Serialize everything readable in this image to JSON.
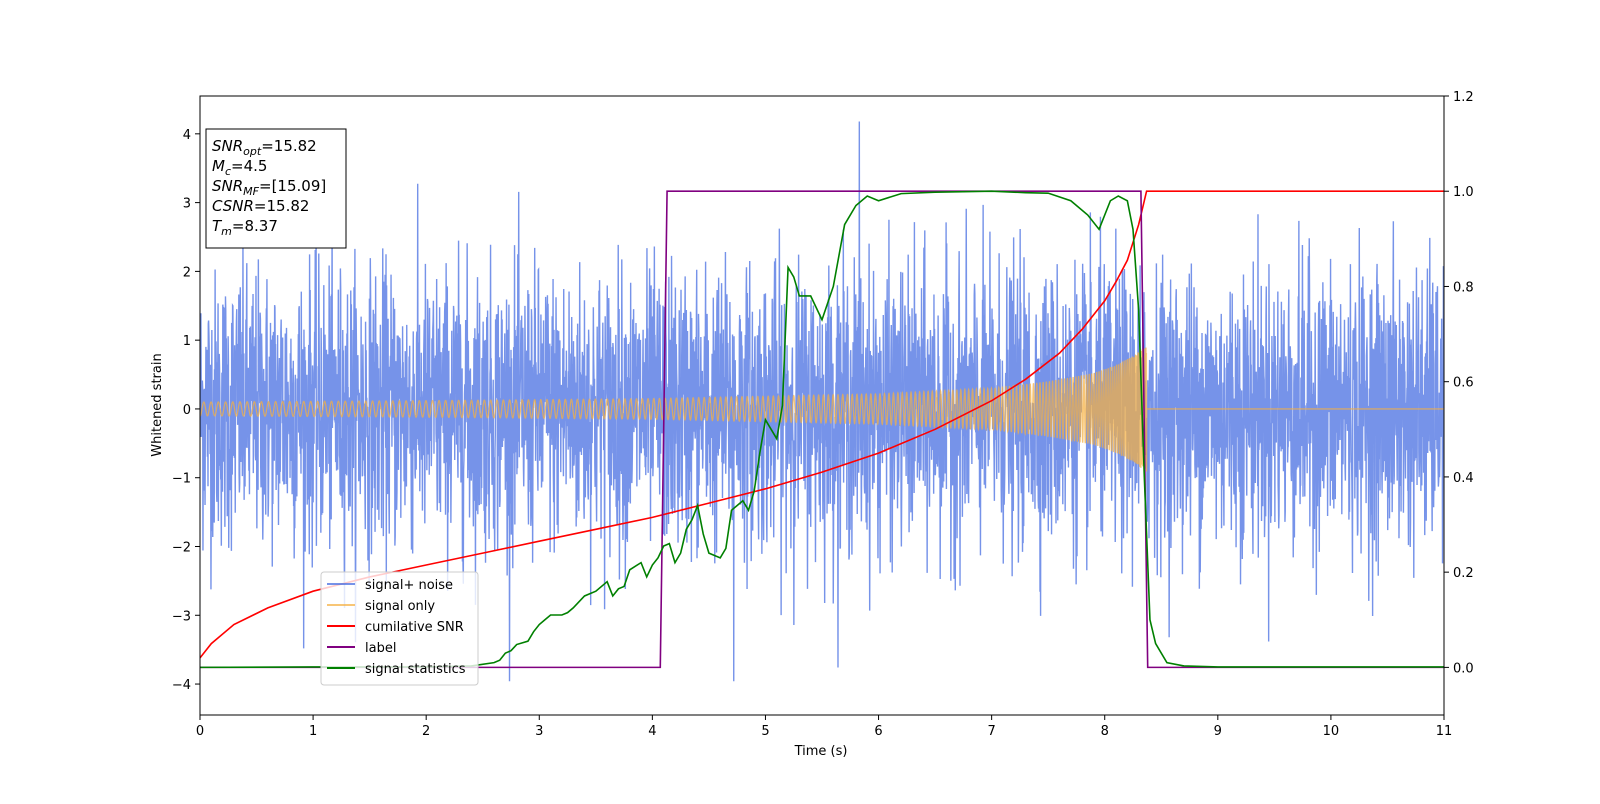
{
  "chart_data": {
    "type": "line",
    "title": "",
    "xlabel": "Time (s)",
    "ylabel": "Whitened strain",
    "xlim": [
      0,
      11
    ],
    "ylim_left": [
      -4.45,
      4.55
    ],
    "ylim_right": [
      -0.1,
      1.2
    ],
    "x_ticks": [
      0,
      1,
      2,
      3,
      4,
      5,
      6,
      7,
      8,
      9,
      10,
      11
    ],
    "y_left_ticks": [
      -4,
      -3,
      -2,
      -1,
      0,
      1,
      2,
      3,
      4
    ],
    "y_right_ticks": [
      0.0,
      0.2,
      0.4,
      0.6,
      0.8,
      1.0,
      1.2
    ],
    "y_right_tick_labels": [
      "0.0",
      "0.2",
      "0.4",
      "0.6",
      "0.8",
      "1.0",
      "1.2"
    ],
    "grid": false,
    "legend_position": "lower-left",
    "annotation": {
      "lines": [
        {
          "base": "SNR",
          "sub": "opt",
          "rest": "=15.82"
        },
        {
          "base": "M",
          "sub": "c",
          "rest": "=4.5"
        },
        {
          "base": "SNR",
          "sub": "MF",
          "rest": "=[15.09]"
        },
        {
          "base": "CSNR",
          "sub": "",
          "rest": "=15.82"
        },
        {
          "base": "T",
          "sub": "m",
          "rest": "=8.37"
        }
      ]
    },
    "series": [
      {
        "name": "signal+ noise",
        "axis": "left",
        "color": "#4169e1",
        "kind": "noise",
        "noise_sigma": 1.0,
        "peak_max": 4.18,
        "peak_min": -3.96,
        "t_range": [
          0,
          11
        ]
      },
      {
        "name": "signal only",
        "axis": "left",
        "color": "#f5b041",
        "kind": "chirp",
        "t_merge": 8.37,
        "envelope": {
          "t": [
            0,
            2,
            4,
            6,
            7,
            7.5,
            7.9,
            8.1,
            8.25,
            8.33,
            8.37
          ],
          "amp": [
            0.1,
            0.12,
            0.15,
            0.22,
            0.3,
            0.4,
            0.52,
            0.64,
            0.77,
            0.87,
            0.92
          ]
        }
      },
      {
        "name": "cumilative SNR",
        "axis": "right",
        "color": "#ff0000",
        "x": [
          0,
          0.1,
          0.3,
          0.6,
          1.0,
          1.5,
          2.0,
          2.5,
          3.0,
          3.5,
          4.0,
          4.5,
          5.0,
          5.5,
          6.0,
          6.5,
          7.0,
          7.3,
          7.6,
          7.8,
          8.0,
          8.1,
          8.2,
          8.3,
          8.37,
          11
        ],
        "y": [
          0.02,
          0.05,
          0.09,
          0.125,
          0.16,
          0.19,
          0.215,
          0.24,
          0.265,
          0.29,
          0.315,
          0.345,
          0.375,
          0.41,
          0.45,
          0.5,
          0.56,
          0.605,
          0.66,
          0.71,
          0.77,
          0.81,
          0.855,
          0.93,
          1.0,
          1.0
        ]
      },
      {
        "name": "label",
        "axis": "right",
        "color": "#800080",
        "x": [
          0,
          4.07,
          4.13,
          8.32,
          8.38,
          11
        ],
        "y": [
          0,
          0,
          1,
          1,
          0,
          0
        ]
      },
      {
        "name": "signal statistics",
        "axis": "right",
        "color": "#008000",
        "x": [
          0,
          1.0,
          2.0,
          2.4,
          2.6,
          2.65,
          2.7,
          2.75,
          2.8,
          2.9,
          2.95,
          3.0,
          3.05,
          3.1,
          3.2,
          3.25,
          3.3,
          3.4,
          3.5,
          3.6,
          3.65,
          3.7,
          3.75,
          3.8,
          3.9,
          3.95,
          4.0,
          4.05,
          4.1,
          4.15,
          4.2,
          4.25,
          4.3,
          4.35,
          4.4,
          4.45,
          4.5,
          4.6,
          4.65,
          4.7,
          4.8,
          4.85,
          4.9,
          4.95,
          5.0,
          5.05,
          5.1,
          5.15,
          5.2,
          5.25,
          5.3,
          5.4,
          5.5,
          5.6,
          5.7,
          5.8,
          5.9,
          6.0,
          6.2,
          6.5,
          7.0,
          7.3,
          7.5,
          7.7,
          7.85,
          7.95,
          8.05,
          8.12,
          8.2,
          8.25,
          8.3,
          8.35,
          8.4,
          8.45,
          8.55,
          8.7,
          9,
          11
        ],
        "y": [
          0.0,
          0.001,
          0.001,
          0.003,
          0.01,
          0.015,
          0.03,
          0.035,
          0.048,
          0.055,
          0.075,
          0.09,
          0.1,
          0.11,
          0.11,
          0.115,
          0.125,
          0.15,
          0.16,
          0.18,
          0.15,
          0.165,
          0.17,
          0.205,
          0.22,
          0.19,
          0.215,
          0.23,
          0.255,
          0.26,
          0.22,
          0.24,
          0.29,
          0.31,
          0.34,
          0.28,
          0.24,
          0.23,
          0.25,
          0.33,
          0.35,
          0.33,
          0.37,
          0.45,
          0.52,
          0.5,
          0.48,
          0.55,
          0.84,
          0.82,
          0.78,
          0.78,
          0.73,
          0.8,
          0.93,
          0.97,
          0.99,
          0.98,
          0.995,
          0.998,
          1.0,
          0.997,
          0.996,
          0.98,
          0.95,
          0.92,
          0.98,
          0.99,
          0.98,
          0.92,
          0.75,
          0.4,
          0.1,
          0.05,
          0.01,
          0.003,
          0.001,
          0.001
        ]
      }
    ]
  }
}
